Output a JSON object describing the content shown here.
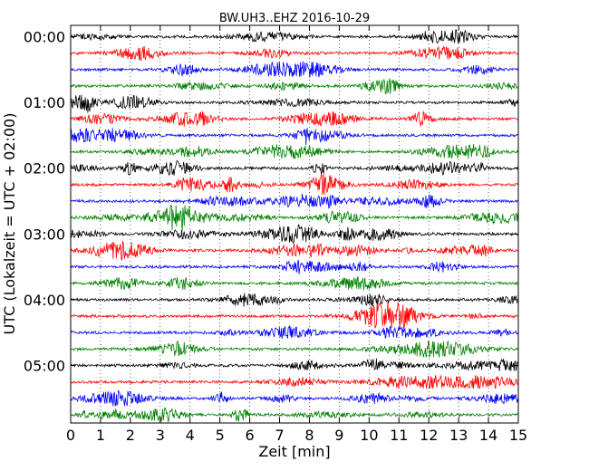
{
  "chart_data": {
    "type": "line",
    "title": "BW.UH3..EHZ 2016-10-29",
    "xlabel": "Zeit  [min]",
    "ylabel": "UTC (Lokalzeit = UTC + 02:00)",
    "xlim": [
      0,
      15
    ],
    "x_ticks": [
      "0",
      "1",
      "2",
      "3",
      "4",
      "5",
      "6",
      "7",
      "8",
      "9",
      "10",
      "11",
      "12",
      "13",
      "14",
      "15"
    ],
    "y_ticks": [
      "00:00",
      "01:00",
      "02:00",
      "03:00",
      "04:00",
      "05:00"
    ],
    "grid": "vertical dotted",
    "row_minutes": 15,
    "row_count": 24,
    "color_cycle": [
      "#000000",
      "#ff0000",
      "#0000ff",
      "#008000"
    ]
  }
}
